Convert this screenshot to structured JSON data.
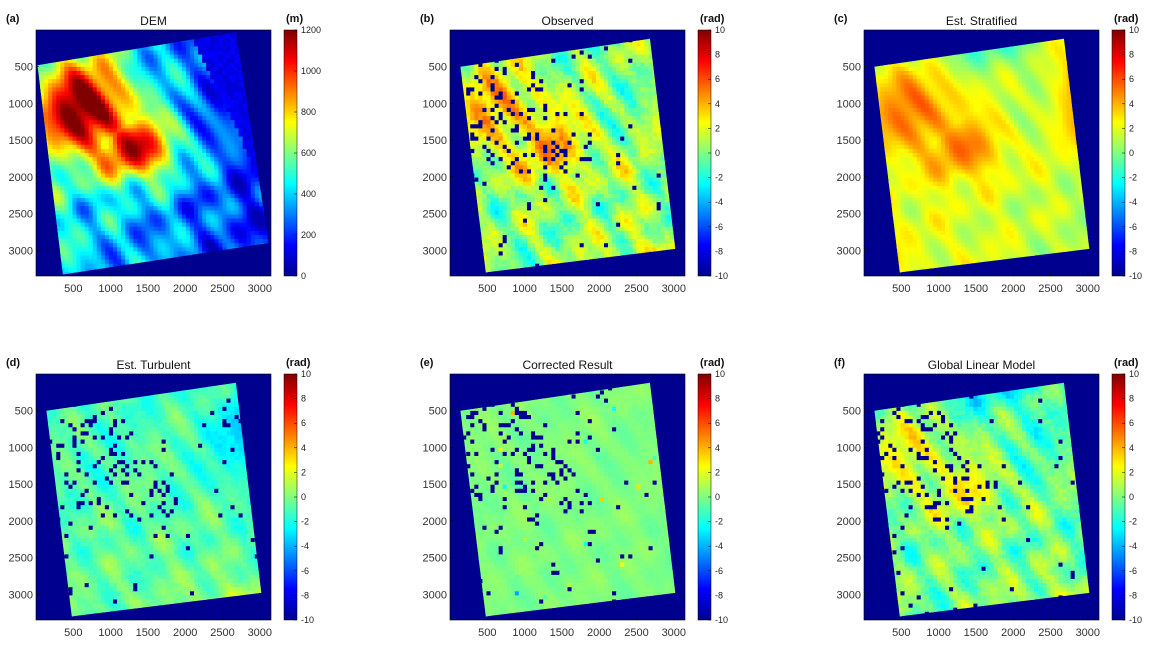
{
  "chart_data": [
    {
      "type": "heatmap",
      "panel_label": "(a)",
      "title": "DEM",
      "colorbar": {
        "unit": "(m)",
        "min": 0,
        "max": 1200,
        "ticks": [
          0,
          200,
          400,
          600,
          800,
          1000,
          1200
        ]
      },
      "x_ticks": [
        500,
        1000,
        1500,
        2000,
        2500,
        3000
      ],
      "y_ticks": [
        500,
        1000,
        1500,
        2000,
        2500,
        3000
      ],
      "xlim": [
        0,
        3150
      ],
      "ylim": [
        3350,
        0
      ],
      "colormap": "jet",
      "pattern": "dem"
    },
    {
      "type": "heatmap",
      "panel_label": "(b)",
      "title": "Observed",
      "colorbar": {
        "unit": "(rad)",
        "min": -10,
        "max": 10,
        "ticks": [
          -10,
          -8,
          -6,
          -4,
          -2,
          0,
          2,
          4,
          6,
          8,
          10
        ]
      },
      "x_ticks": [
        500,
        1000,
        1500,
        2000,
        2500,
        3000
      ],
      "y_ticks": [
        500,
        1000,
        1500,
        2000,
        2500,
        3000
      ],
      "xlim": [
        0,
        3150
      ],
      "ylim": [
        3350,
        0
      ],
      "colormap": "jet",
      "pattern": "observed"
    },
    {
      "type": "heatmap",
      "panel_label": "(c)",
      "title": "Est. Stratified",
      "colorbar": {
        "unit": "(rad)",
        "min": -10,
        "max": 10,
        "ticks": [
          -10,
          -8,
          -6,
          -4,
          -2,
          0,
          2,
          4,
          6,
          8,
          10
        ]
      },
      "x_ticks": [
        500,
        1000,
        1500,
        2000,
        2500,
        3000
      ],
      "y_ticks": [
        500,
        1000,
        1500,
        2000,
        2500,
        3000
      ],
      "xlim": [
        0,
        3150
      ],
      "ylim": [
        3350,
        0
      ],
      "colormap": "jet",
      "pattern": "stratified"
    },
    {
      "type": "heatmap",
      "panel_label": "(d)",
      "title": "Est. Turbulent",
      "colorbar": {
        "unit": "(rad)",
        "min": -10,
        "max": 10,
        "ticks": [
          -10,
          -8,
          -6,
          -4,
          -2,
          0,
          2,
          4,
          6,
          8,
          10
        ]
      },
      "x_ticks": [
        500,
        1000,
        1500,
        2000,
        2500,
        3000
      ],
      "y_ticks": [
        500,
        1000,
        1500,
        2000,
        2500,
        3000
      ],
      "xlim": [
        0,
        3150
      ],
      "ylim": [
        3350,
        0
      ],
      "colormap": "jet",
      "pattern": "turbulent"
    },
    {
      "type": "heatmap",
      "panel_label": "(e)",
      "title": "Corrected Result",
      "colorbar": {
        "unit": "(rad)",
        "min": -10,
        "max": 10,
        "ticks": [
          -10,
          -8,
          -6,
          -4,
          -2,
          0,
          2,
          4,
          6,
          8,
          10
        ]
      },
      "x_ticks": [
        500,
        1000,
        1500,
        2000,
        2500,
        3000
      ],
      "y_ticks": [
        500,
        1000,
        1500,
        2000,
        2500,
        3000
      ],
      "xlim": [
        0,
        3150
      ],
      "ylim": [
        3350,
        0
      ],
      "colormap": "jet",
      "pattern": "corrected"
    },
    {
      "type": "heatmap",
      "panel_label": "(f)",
      "title": "Global Linear Model",
      "colorbar": {
        "unit": "(rad)",
        "min": -10,
        "max": 10,
        "ticks": [
          -10,
          -8,
          -6,
          -4,
          -2,
          0,
          2,
          4,
          6,
          8,
          10
        ]
      },
      "x_ticks": [
        500,
        1000,
        1500,
        2000,
        2500,
        3000
      ],
      "y_ticks": [
        500,
        1000,
        1500,
        2000,
        2500,
        3000
      ],
      "xlim": [
        0,
        3150
      ],
      "ylim": [
        3350,
        0
      ],
      "colormap": "jet",
      "pattern": "global"
    }
  ]
}
